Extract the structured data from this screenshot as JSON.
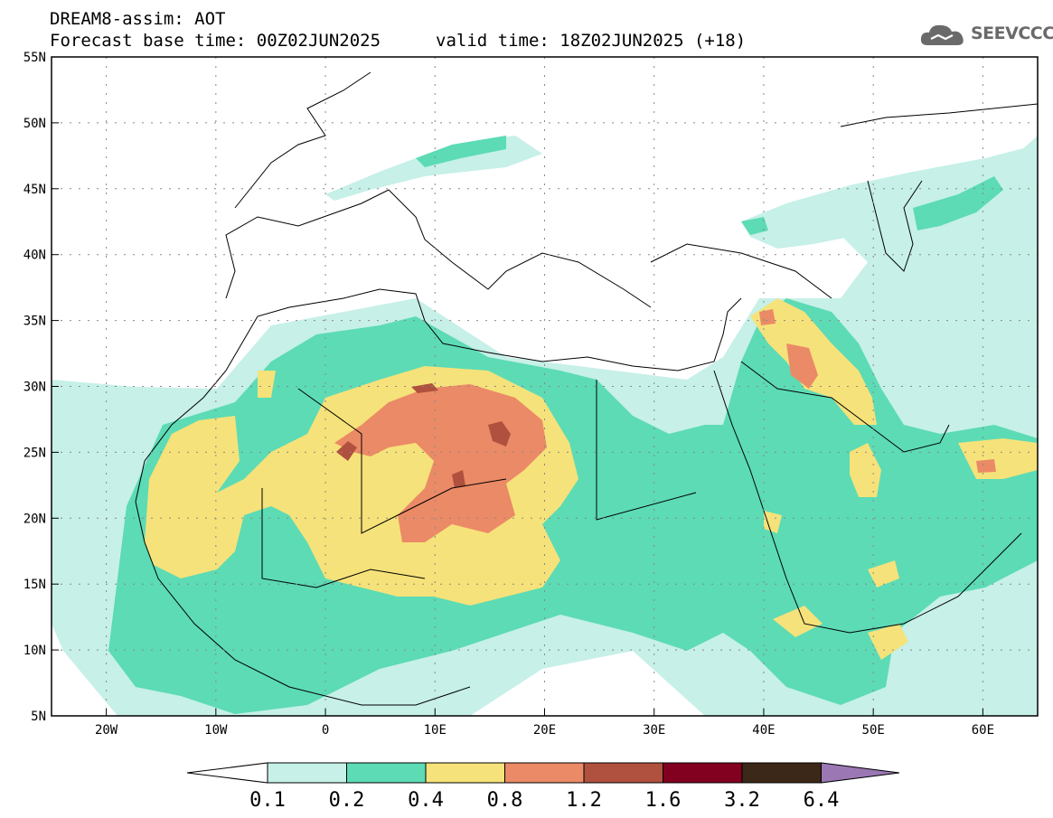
{
  "header": {
    "title": "DREAM8-assim: AOT",
    "base_time": "Forecast base time: 00Z02JUN2025",
    "valid_time": "valid time: 18Z02JUN2025 (+18)"
  },
  "logo": {
    "text": "SEEVCCC",
    "icon": "cloud-icon",
    "color": "#6a6a6a"
  },
  "map": {
    "lon_range": [
      -25,
      65
    ],
    "lat_range": [
      5,
      55
    ],
    "lat_ticks": [
      "55N",
      "50N",
      "45N",
      "40N",
      "35N",
      "30N",
      "25N",
      "20N",
      "15N",
      "10N",
      "5N"
    ],
    "lon_ticks": [
      "20W",
      "10W",
      "0",
      "10E",
      "20E",
      "30E",
      "40E",
      "50E",
      "60E"
    ],
    "gridlines": "dotted"
  },
  "colorbar": {
    "labels": [
      "0.1",
      "0.2",
      "0.4",
      "0.8",
      "1.2",
      "1.6",
      "3.2",
      "6.4"
    ],
    "colors": [
      "#ffffff",
      "#c6f0e8",
      "#5cdbb5",
      "#f6e27a",
      "#eb8a66",
      "#b0503e",
      "#820020",
      "#3c2818",
      "#9b78b4"
    ]
  }
}
